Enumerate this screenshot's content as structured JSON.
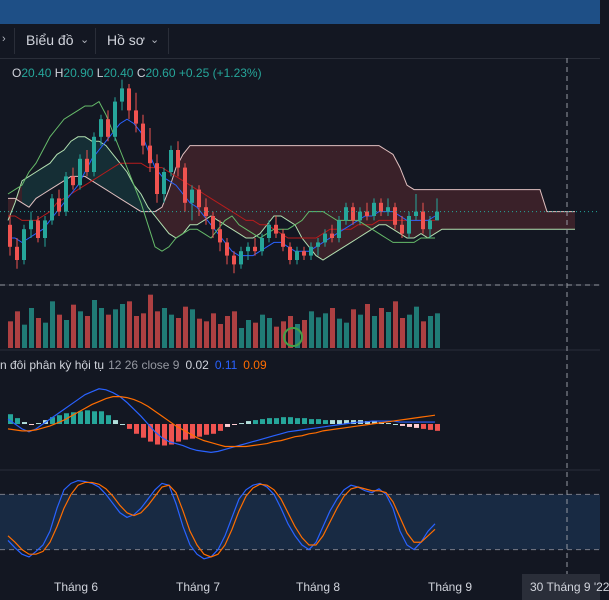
{
  "toolbar": {
    "chart_menu_label": "Biểu đồ",
    "profile_menu_label": "Hồ sơ"
  },
  "ohlc": {
    "open_key": "O",
    "open_value": "20.40",
    "high_key": "H",
    "high_value": "20.90",
    "low_key": "L",
    "low_value": "20.40",
    "close_key": "C",
    "close_value": "20.60",
    "change_text": "+0.25 (+1.23%)"
  },
  "macd_legend": {
    "name": "n đôi phân kỳ hội tụ",
    "params": "12 26 close 9",
    "value_1": "0.02",
    "value_2": "0.11",
    "value_3": "0.09"
  },
  "x_axis": {
    "month_6": "Tháng 6",
    "month_7": "Tháng 7",
    "month_8": "Tháng 8",
    "month_9": "Tháng 9",
    "crosshair_date": "30 Tháng 9 '22"
  },
  "colors": {
    "background": "#131722",
    "up": "#26a69a",
    "down": "#ef5350",
    "macd_line": "#2962ff",
    "signal_line": "#ff6d00",
    "cloud_bear": "#ef5350",
    "cloud_bull": "#26a69a",
    "stoch_band": "#1e3a5f"
  },
  "chart_data": [
    {
      "type": "candlestick",
      "title": "",
      "candles": [
        {
          "o": 20.3,
          "h": 20.5,
          "l": 19.6,
          "c": 19.8
        },
        {
          "o": 19.8,
          "h": 20.0,
          "l": 19.3,
          "c": 19.5
        },
        {
          "o": 19.5,
          "h": 20.3,
          "l": 19.4,
          "c": 20.2
        },
        {
          "o": 20.2,
          "h": 20.6,
          "l": 20.0,
          "c": 20.4
        },
        {
          "o": 20.4,
          "h": 20.5,
          "l": 19.9,
          "c": 20.0
        },
        {
          "o": 20.0,
          "h": 20.5,
          "l": 19.8,
          "c": 20.4
        },
        {
          "o": 20.4,
          "h": 21.0,
          "l": 20.3,
          "c": 20.9
        },
        {
          "o": 20.9,
          "h": 21.1,
          "l": 20.5,
          "c": 20.6
        },
        {
          "o": 20.6,
          "h": 21.5,
          "l": 20.5,
          "c": 21.4
        },
        {
          "o": 21.4,
          "h": 21.6,
          "l": 21.1,
          "c": 21.2
        },
        {
          "o": 21.2,
          "h": 21.9,
          "l": 21.1,
          "c": 21.8
        },
        {
          "o": 21.8,
          "h": 22.0,
          "l": 21.4,
          "c": 21.5
        },
        {
          "o": 21.5,
          "h": 22.4,
          "l": 21.4,
          "c": 22.3
        },
        {
          "o": 22.3,
          "h": 22.8,
          "l": 22.1,
          "c": 22.7
        },
        {
          "o": 22.7,
          "h": 22.9,
          "l": 22.2,
          "c": 22.3
        },
        {
          "o": 22.3,
          "h": 23.2,
          "l": 22.2,
          "c": 23.1
        },
        {
          "o": 23.1,
          "h": 23.6,
          "l": 22.9,
          "c": 23.4
        },
        {
          "o": 23.4,
          "h": 23.5,
          "l": 22.7,
          "c": 22.9
        },
        {
          "o": 22.9,
          "h": 23.3,
          "l": 22.4,
          "c": 22.6
        },
        {
          "o": 22.6,
          "h": 22.8,
          "l": 21.9,
          "c": 22.1
        },
        {
          "o": 22.1,
          "h": 22.5,
          "l": 21.5,
          "c": 21.7
        },
        {
          "o": 21.7,
          "h": 21.9,
          "l": 20.8,
          "c": 21.0
        },
        {
          "o": 21.0,
          "h": 21.6,
          "l": 20.8,
          "c": 21.5
        },
        {
          "o": 21.5,
          "h": 22.1,
          "l": 21.4,
          "c": 22.0
        },
        {
          "o": 22.0,
          "h": 22.2,
          "l": 21.4,
          "c": 21.6
        },
        {
          "o": 21.6,
          "h": 21.7,
          "l": 20.6,
          "c": 20.8
        },
        {
          "o": 20.8,
          "h": 21.2,
          "l": 20.4,
          "c": 21.1
        },
        {
          "o": 21.1,
          "h": 21.2,
          "l": 20.5,
          "c": 20.7
        },
        {
          "o": 20.7,
          "h": 20.9,
          "l": 20.3,
          "c": 20.5
        },
        {
          "o": 20.5,
          "h": 20.6,
          "l": 20.0,
          "c": 20.2
        },
        {
          "o": 20.2,
          "h": 20.4,
          "l": 19.7,
          "c": 19.9
        },
        {
          "o": 19.9,
          "h": 20.0,
          "l": 19.4,
          "c": 19.6
        },
        {
          "o": 19.6,
          "h": 19.7,
          "l": 19.2,
          "c": 19.4
        },
        {
          "o": 19.4,
          "h": 19.8,
          "l": 19.3,
          "c": 19.7
        },
        {
          "o": 19.7,
          "h": 19.9,
          "l": 19.5,
          "c": 19.8
        },
        {
          "o": 19.8,
          "h": 20.0,
          "l": 19.6,
          "c": 19.7
        },
        {
          "o": 19.7,
          "h": 20.1,
          "l": 19.6,
          "c": 20.0
        },
        {
          "o": 20.0,
          "h": 20.4,
          "l": 19.9,
          "c": 20.3
        },
        {
          "o": 20.3,
          "h": 20.5,
          "l": 20.0,
          "c": 20.1
        },
        {
          "o": 20.1,
          "h": 20.2,
          "l": 19.7,
          "c": 19.8
        },
        {
          "o": 19.8,
          "h": 19.9,
          "l": 19.4,
          "c": 19.5
        },
        {
          "o": 19.5,
          "h": 19.8,
          "l": 19.4,
          "c": 19.7
        },
        {
          "o": 19.7,
          "h": 19.8,
          "l": 19.5,
          "c": 19.6
        },
        {
          "o": 19.6,
          "h": 19.9,
          "l": 19.5,
          "c": 19.8
        },
        {
          "o": 19.8,
          "h": 20.0,
          "l": 19.6,
          "c": 19.9
        },
        {
          "o": 19.9,
          "h": 20.2,
          "l": 19.8,
          "c": 20.1
        },
        {
          "o": 20.1,
          "h": 20.3,
          "l": 19.9,
          "c": 20.0
        },
        {
          "o": 20.0,
          "h": 20.5,
          "l": 19.9,
          "c": 20.4
        },
        {
          "o": 20.4,
          "h": 20.8,
          "l": 20.3,
          "c": 20.7
        },
        {
          "o": 20.7,
          "h": 20.8,
          "l": 20.3,
          "c": 20.4
        },
        {
          "o": 20.4,
          "h": 20.7,
          "l": 20.3,
          "c": 20.6
        },
        {
          "o": 20.6,
          "h": 20.8,
          "l": 20.4,
          "c": 20.5
        },
        {
          "o": 20.5,
          "h": 20.9,
          "l": 20.4,
          "c": 20.8
        },
        {
          "o": 20.8,
          "h": 20.9,
          "l": 20.5,
          "c": 20.6
        },
        {
          "o": 20.6,
          "h": 20.9,
          "l": 20.5,
          "c": 20.7
        },
        {
          "o": 20.7,
          "h": 20.8,
          "l": 20.2,
          "c": 20.3
        },
        {
          "o": 20.3,
          "h": 20.5,
          "l": 20.0,
          "c": 20.1
        },
        {
          "o": 20.1,
          "h": 20.6,
          "l": 20.0,
          "c": 20.5
        },
        {
          "o": 20.5,
          "h": 21.0,
          "l": 20.4,
          "c": 20.6
        },
        {
          "o": 20.6,
          "h": 20.8,
          "l": 20.1,
          "c": 20.2
        },
        {
          "o": 20.2,
          "h": 20.5,
          "l": 20.0,
          "c": 20.4
        },
        {
          "o": 20.4,
          "h": 20.9,
          "l": 20.4,
          "c": 20.6
        }
      ],
      "ichimoku": {
        "conversion_line": [
          20.0,
          20.0,
          19.9,
          20.0,
          20.1,
          20.2,
          20.4,
          20.6,
          20.8,
          21.0,
          21.2,
          21.5,
          21.8,
          22.0,
          22.2,
          22.4,
          22.6,
          22.7,
          22.6,
          22.4,
          22.0,
          21.6,
          21.4,
          21.3,
          21.2,
          21.0,
          20.8,
          20.7,
          20.5,
          20.3,
          20.1,
          19.9,
          19.7,
          19.6,
          19.6,
          19.6,
          19.7,
          19.8,
          19.9,
          19.9,
          19.8,
          19.7,
          19.7,
          19.7,
          19.8,
          19.9,
          20.0,
          20.1,
          20.2,
          20.3,
          20.4,
          20.5,
          20.5,
          20.6,
          20.6,
          20.6,
          20.5,
          20.4,
          20.4,
          20.4,
          20.4,
          20.5
        ],
        "base_line": [
          20.5,
          20.5,
          20.4,
          20.4,
          20.4,
          20.5,
          20.6,
          20.8,
          20.9,
          21.0,
          21.1,
          21.2,
          21.3,
          21.4,
          21.5,
          21.6,
          21.7,
          21.7,
          21.7,
          21.7,
          21.6,
          21.6,
          21.6,
          21.5,
          21.4,
          21.3,
          21.2,
          21.1,
          21.0,
          20.9,
          20.8,
          20.7,
          20.6,
          20.5,
          20.4,
          20.4,
          20.3,
          20.3,
          20.2,
          20.1,
          20.0,
          20.0,
          20.0,
          20.0,
          20.0,
          20.1,
          20.2,
          20.2,
          20.2,
          20.2,
          20.3,
          20.3,
          20.3,
          20.4,
          20.4,
          20.4,
          20.4,
          20.4,
          20.4,
          20.4,
          20.4,
          20.4
        ],
        "lagging_span": [
          21.0,
          21.1,
          21.2,
          21.5,
          21.7,
          22.0,
          22.3,
          22.5,
          22.7,
          22.8,
          22.9,
          23.0,
          23.0,
          23.1,
          22.8,
          22.4,
          22.0,
          21.6,
          21.2,
          20.8,
          20.3,
          19.8,
          19.7,
          19.8,
          20.0,
          20.1,
          20.2,
          20.2,
          20.1,
          20.0,
          20.2,
          20.4,
          20.5,
          20.3,
          20.2,
          20.1,
          20.0,
          20.1,
          20.2,
          20.2,
          20.2,
          20.3,
          20.4,
          20.6,
          20.6,
          20.6,
          20.5,
          20.4,
          20.4,
          20.4,
          20.4,
          20.3,
          20.2,
          20.1,
          20.0,
          19.9,
          19.9,
          19.9,
          19.9,
          20.0,
          20.0,
          20.0
        ],
        "leading_span_a": [
          20.4,
          20.8,
          21.3,
          21.4,
          21.5,
          21.6,
          21.7,
          21.9,
          22.0,
          22.2,
          22.3,
          22.3,
          22.2,
          22.2,
          22.1,
          21.9,
          21.7,
          21.5,
          21.2,
          21.0,
          20.7,
          20.5,
          20.3,
          20.1,
          20.0,
          20.1,
          20.3,
          20.3,
          20.4,
          20.5,
          20.4,
          20.3,
          20.2,
          20.1,
          20.0,
          20.0,
          20.1,
          20.3,
          20.5,
          20.5,
          20.4,
          20.3,
          20.0,
          19.8,
          19.6,
          19.5,
          19.6,
          19.7,
          19.8,
          19.9,
          20.0,
          20.1,
          20.2,
          20.3,
          20.3,
          20.2,
          20.1,
          20.0,
          20.0,
          20.1,
          20.0,
          20.1,
          20.2,
          20.2,
          20.2,
          20.2,
          20.2,
          20.2,
          20.2,
          20.2,
          20.2,
          20.2,
          20.2,
          20.2,
          20.2,
          20.2,
          20.2,
          20.2,
          20.2,
          20.2,
          20.2,
          20.2
        ],
        "leading_span_b": [
          20.9,
          20.9,
          20.8,
          20.7,
          20.9,
          21.0,
          21.1,
          21.2,
          21.3,
          21.4,
          21.4,
          21.4,
          21.3,
          21.2,
          21.1,
          21.0,
          20.9,
          20.8,
          20.7,
          20.6,
          20.6,
          20.6,
          20.7,
          21.1,
          21.6,
          21.9,
          22.1,
          22.1,
          22.1,
          22.1,
          22.1,
          22.1,
          22.1,
          22.1,
          22.1,
          22.1,
          22.1,
          22.1,
          22.1,
          22.1,
          22.1,
          22.1,
          22.1,
          22.1,
          22.1,
          22.1,
          22.1,
          22.1,
          22.1,
          22.1,
          22.1,
          22.1,
          22.1,
          22.1,
          22.0,
          21.9,
          21.6,
          21.2,
          21.1,
          21.1,
          21.1,
          21.1,
          21.1,
          21.1,
          21.1,
          21.1,
          21.1,
          21.1,
          21.1,
          21.1,
          21.1,
          21.1,
          21.1,
          21.1,
          21.1,
          21.1,
          21.1,
          20.6,
          20.6,
          20.6,
          20.6,
          20.6
        ]
      },
      "ylim": [
        19.0,
        24.0
      ]
    },
    {
      "type": "bar",
      "title": "",
      "values": [
        40,
        55,
        35,
        60,
        45,
        38,
        70,
        50,
        42,
        65,
        55,
        48,
        72,
        60,
        50,
        58,
        66,
        70,
        48,
        52,
        80,
        55,
        60,
        50,
        45,
        62,
        58,
        44,
        40,
        52,
        36,
        48,
        55,
        30,
        42,
        38,
        50,
        45,
        32,
        40,
        48,
        36,
        42,
        55,
        46,
        52,
        60,
        44,
        38,
        58,
        50,
        66,
        48,
        60,
        54,
        70,
        45,
        50,
        62,
        40,
        48,
        52
      ],
      "ylim": [
        0,
        90
      ]
    },
    {
      "type": "line",
      "title": "",
      "macd": [
        0.05,
        0.0,
        -0.05,
        -0.08,
        -0.05,
        0.0,
        0.05,
        0.1,
        0.15,
        0.2,
        0.25,
        0.3,
        0.33,
        0.36,
        0.35,
        0.32,
        0.28,
        0.22,
        0.15,
        0.08,
        0.0,
        -0.08,
        -0.14,
        -0.18,
        -0.2,
        -0.22,
        -0.25,
        -0.27,
        -0.28,
        -0.29,
        -0.28,
        -0.26,
        -0.24,
        -0.22,
        -0.2,
        -0.18,
        -0.16,
        -0.14,
        -0.12,
        -0.1,
        -0.08,
        -0.07,
        -0.06,
        -0.05,
        -0.04,
        -0.03,
        -0.02,
        -0.01,
        0.0,
        0.01,
        0.02,
        0.02,
        0.03,
        0.03,
        0.03,
        0.03,
        0.02,
        0.02,
        0.02,
        0.02,
        0.02,
        0.02
      ],
      "signal": [
        -0.05,
        -0.06,
        -0.07,
        -0.07,
        -0.06,
        -0.04,
        -0.02,
        0.01,
        0.04,
        0.08,
        0.12,
        0.16,
        0.2,
        0.23,
        0.26,
        0.28,
        0.28,
        0.27,
        0.25,
        0.22,
        0.18,
        0.13,
        0.08,
        0.03,
        -0.02,
        -0.06,
        -0.1,
        -0.14,
        -0.17,
        -0.19,
        -0.21,
        -0.23,
        -0.23,
        -0.23,
        -0.23,
        -0.22,
        -0.21,
        -0.2,
        -0.18,
        -0.17,
        -0.15,
        -0.13,
        -0.12,
        -0.1,
        -0.09,
        -0.07,
        -0.06,
        -0.05,
        -0.04,
        -0.03,
        -0.02,
        -0.01,
        0.0,
        0.01,
        0.02,
        0.03,
        0.04,
        0.05,
        0.06,
        0.07,
        0.08,
        0.09
      ],
      "ylim": [
        -0.45,
        0.45
      ]
    },
    {
      "type": "line",
      "title": "",
      "k": [
        30,
        22,
        15,
        12,
        18,
        25,
        40,
        65,
        85,
        92,
        95,
        94,
        92,
        88,
        80,
        70,
        60,
        55,
        58,
        65,
        75,
        85,
        92,
        90,
        70,
        45,
        25,
        15,
        10,
        12,
        20,
        35,
        55,
        75,
        85,
        90,
        92,
        88,
        80,
        65,
        48,
        35,
        25,
        20,
        28,
        45,
        62,
        75,
        85,
        90,
        88,
        84,
        82,
        86,
        80,
        65,
        40,
        25,
        20,
        28,
        40,
        48
      ],
      "d": [
        35,
        28,
        20,
        15,
        15,
        18,
        28,
        45,
        65,
        80,
        90,
        93,
        93,
        91,
        86,
        78,
        68,
        60,
        57,
        60,
        68,
        78,
        88,
        90,
        82,
        62,
        40,
        25,
        15,
        12,
        15,
        25,
        42,
        62,
        78,
        87,
        91,
        90,
        85,
        75,
        60,
        45,
        33,
        25,
        25,
        35,
        50,
        65,
        78,
        86,
        88,
        86,
        84,
        84,
        82,
        72,
        55,
        38,
        28,
        28,
        35,
        42
      ],
      "ylim": [
        0,
        100
      ]
    }
  ]
}
